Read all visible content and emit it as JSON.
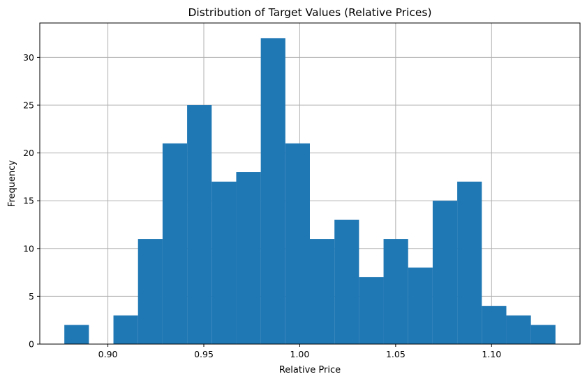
{
  "chart_data": {
    "type": "bar",
    "title": "Distribution of Target Values (Relative Prices)",
    "xlabel": "Relative Price",
    "ylabel": "Frequency",
    "bin_edges": [
      0.8773,
      0.8901,
      0.9029,
      0.9157,
      0.9285,
      0.9413,
      0.9541,
      0.9669,
      0.9797,
      0.9925,
      1.0053,
      1.0181,
      1.0309,
      1.0437,
      1.0565,
      1.0693,
      1.0821,
      1.0949,
      1.1077,
      1.1205,
      1.1333
    ],
    "values": [
      2,
      0,
      3,
      11,
      21,
      25,
      17,
      18,
      32,
      21,
      11,
      13,
      7,
      11,
      8,
      15,
      17,
      4,
      3,
      2
    ],
    "xlim": [
      0.8645,
      1.1461
    ],
    "ylim": [
      0,
      33.6
    ],
    "xticks": [
      0.9,
      0.95,
      1.0,
      1.05,
      1.1
    ],
    "xtick_labels": [
      "0.90",
      "0.95",
      "1.00",
      "1.05",
      "1.10"
    ],
    "yticks": [
      0,
      5,
      10,
      15,
      20,
      25,
      30
    ],
    "ytick_labels": [
      "0",
      "5",
      "10",
      "15",
      "20",
      "25",
      "30"
    ],
    "grid": true,
    "bar_color": "#1f77b4"
  }
}
